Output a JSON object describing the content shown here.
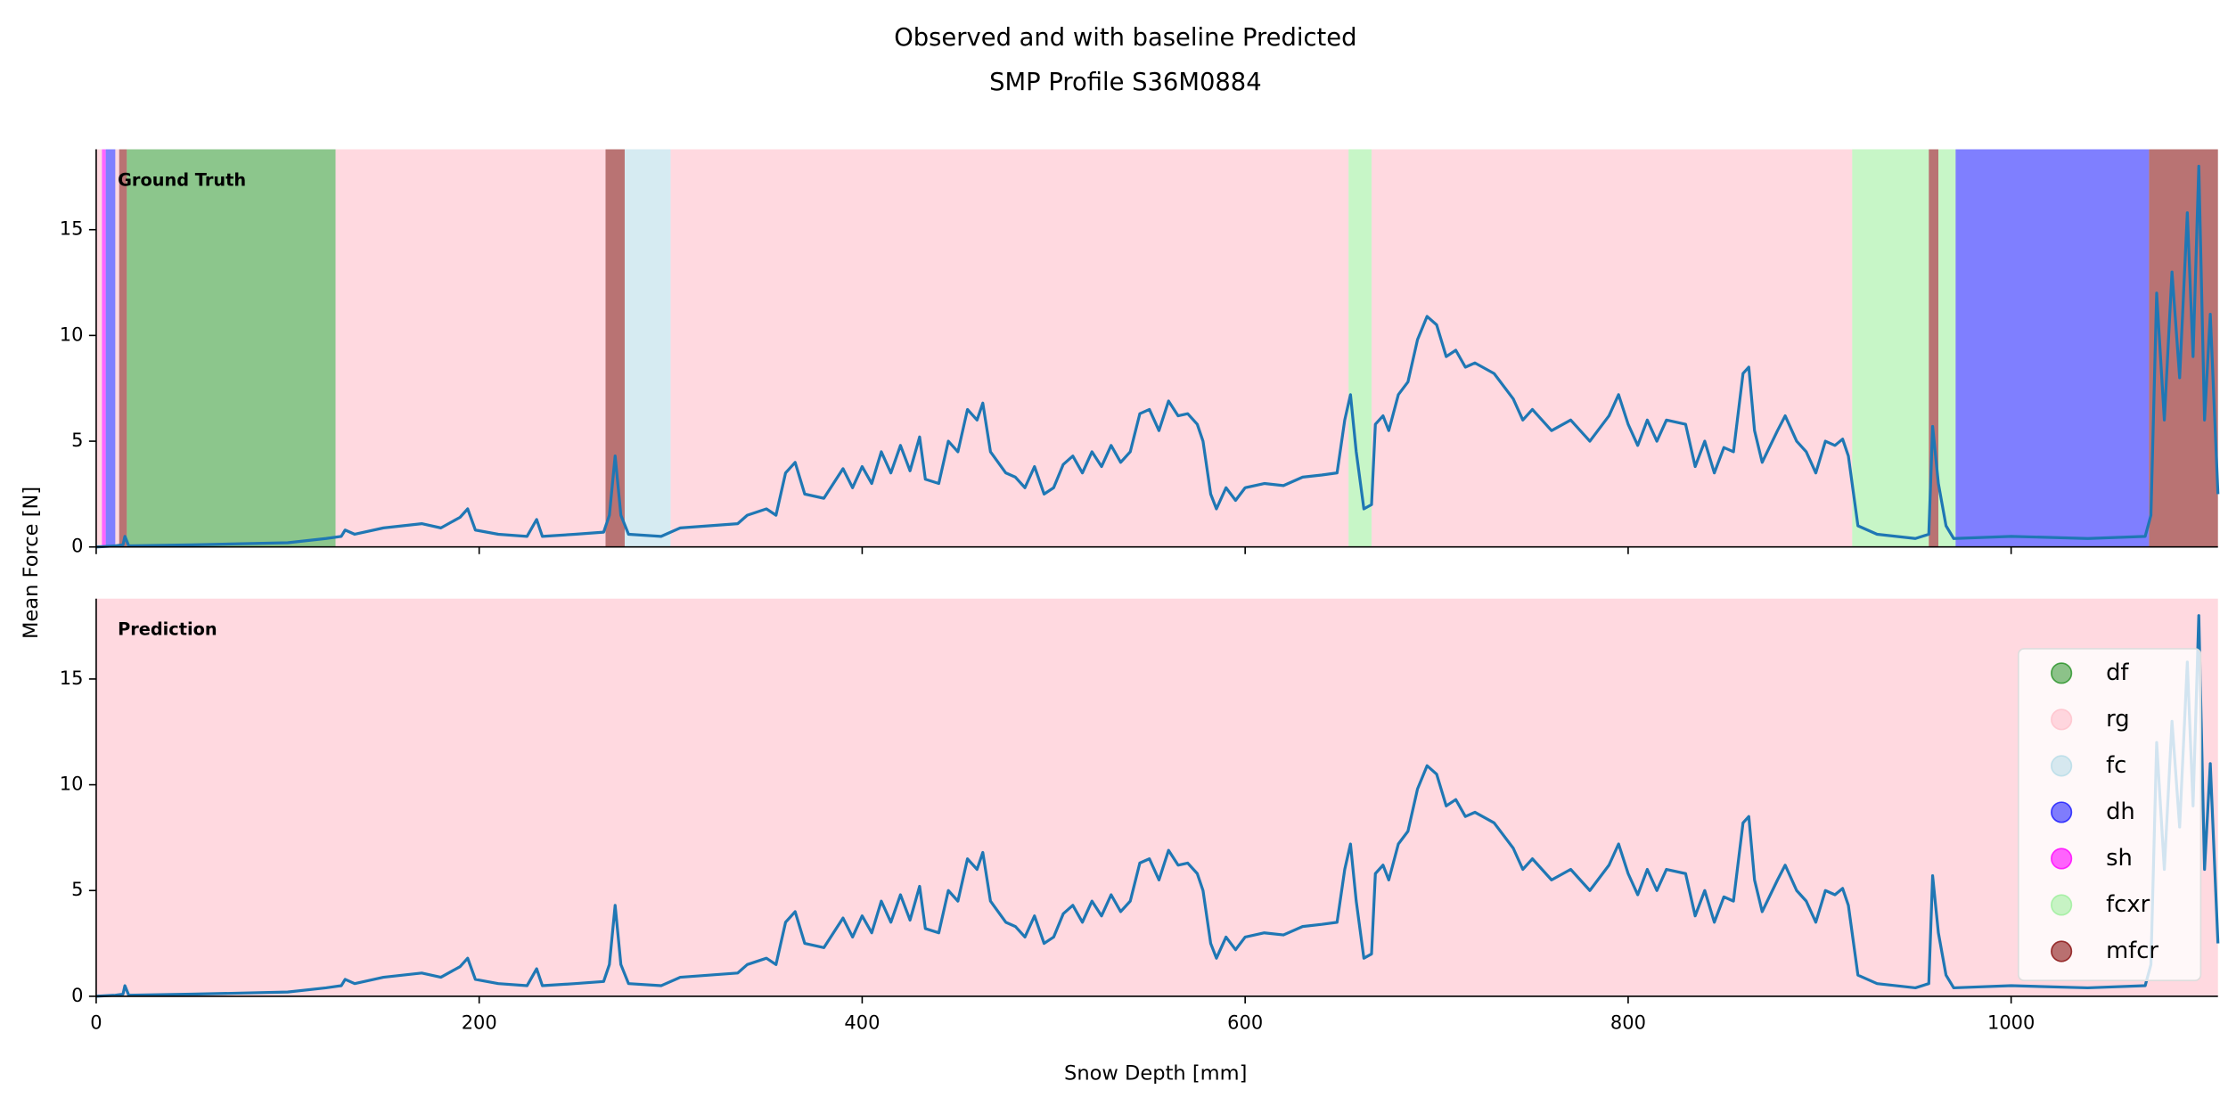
{
  "chart_data": {
    "type": "line",
    "title": [
      "Observed and with baseline Predicted",
      "SMP Profile S36M0884"
    ],
    "xlabel": "Snow Depth [mm]",
    "ylabel": "Mean Force [N]",
    "xlim": [
      0,
      1108
    ],
    "xticks": [
      0,
      200,
      400,
      600,
      800,
      1000
    ],
    "ylim": [
      0,
      18.8
    ],
    "yticks": [
      0,
      5,
      10,
      15
    ],
    "legend_position": "lower right",
    "classes": [
      {
        "name": "df",
        "color": "#008000",
        "opacity": 0.45
      },
      {
        "name": "rg",
        "color": "#ffc0cb",
        "opacity": 0.6
      },
      {
        "name": "fc",
        "color": "#add8e6",
        "opacity": 0.5
      },
      {
        "name": "dh",
        "color": "#0000ff",
        "opacity": 0.5
      },
      {
        "name": "sh",
        "color": "#ff00ff",
        "opacity": 0.6
      },
      {
        "name": "fcxr",
        "color": "#90ee90",
        "opacity": 0.5
      },
      {
        "name": "mfcr",
        "color": "#800000",
        "opacity": 0.55
      }
    ],
    "signal": {
      "color": "#1f77b4",
      "x": [
        0,
        10,
        14,
        15,
        17,
        50,
        100,
        120,
        128,
        130,
        135,
        150,
        170,
        180,
        190,
        194,
        198,
        210,
        225,
        230,
        233,
        250,
        265,
        268,
        271,
        274,
        278,
        295,
        305,
        320,
        335,
        340,
        350,
        355,
        360,
        365,
        370,
        380,
        385,
        390,
        395,
        400,
        405,
        410,
        415,
        420,
        425,
        430,
        433,
        440,
        445,
        450,
        455,
        460,
        463,
        467,
        475,
        480,
        485,
        490,
        495,
        500,
        505,
        510,
        515,
        520,
        525,
        530,
        535,
        540,
        545,
        550,
        555,
        560,
        565,
        570,
        575,
        578,
        582,
        585,
        590,
        595,
        600,
        610,
        620,
        630,
        640,
        648,
        652,
        655,
        658,
        662,
        666,
        668,
        672,
        675,
        680,
        685,
        690,
        695,
        700,
        705,
        710,
        715,
        720,
        730,
        740,
        745,
        750,
        760,
        770,
        780,
        790,
        795,
        800,
        805,
        810,
        815,
        820,
        830,
        835,
        840,
        845,
        850,
        855,
        860,
        863,
        866,
        870,
        878,
        882,
        888,
        893,
        898,
        903,
        908,
        912,
        915,
        920,
        930,
        940,
        950,
        957,
        959,
        962,
        966,
        970,
        1000,
        1040,
        1070,
        1073,
        1076,
        1080,
        1084,
        1088,
        1092,
        1095,
        1098,
        1101,
        1104,
        1108
      ],
      "y": [
        0,
        0.05,
        0.1,
        0.5,
        0.05,
        0.1,
        0.2,
        0.4,
        0.5,
        0.8,
        0.6,
        0.9,
        1.1,
        0.9,
        1.4,
        1.8,
        0.8,
        0.6,
        0.5,
        1.3,
        0.5,
        0.6,
        0.7,
        1.5,
        4.3,
        1.5,
        0.6,
        0.5,
        0.9,
        1.0,
        1.1,
        1.5,
        1.8,
        1.5,
        3.5,
        4.0,
        2.5,
        2.3,
        3.0,
        3.7,
        2.8,
        3.8,
        3.0,
        4.5,
        3.5,
        4.8,
        3.6,
        5.2,
        3.2,
        3.0,
        5.0,
        4.5,
        6.5,
        6.0,
        6.8,
        4.5,
        3.5,
        3.3,
        2.8,
        3.8,
        2.5,
        2.8,
        3.9,
        4.3,
        3.5,
        4.5,
        3.8,
        4.8,
        4.0,
        4.5,
        6.3,
        6.5,
        5.5,
        6.9,
        6.2,
        6.3,
        5.8,
        5.0,
        2.5,
        1.8,
        2.8,
        2.2,
        2.8,
        3.0,
        2.9,
        3.3,
        3.4,
        3.5,
        6.0,
        7.2,
        4.5,
        1.8,
        2.0,
        5.8,
        6.2,
        5.5,
        7.2,
        7.8,
        9.8,
        10.9,
        10.5,
        9.0,
        9.3,
        8.5,
        8.7,
        8.2,
        7.0,
        6.0,
        6.5,
        5.5,
        6.0,
        5.0,
        6.2,
        7.2,
        5.8,
        4.8,
        6.0,
        5.0,
        6.0,
        5.8,
        3.8,
        5.0,
        3.5,
        4.7,
        4.5,
        8.2,
        8.5,
        5.5,
        4.0,
        5.5,
        6.2,
        5.0,
        4.5,
        3.5,
        5.0,
        4.8,
        5.1,
        4.3,
        1.0,
        0.6,
        0.5,
        0.4,
        0.6,
        5.7,
        3.0,
        1.0,
        0.4,
        0.5,
        0.4,
        0.5,
        1.5,
        12.0,
        6.0,
        13.0,
        8.0,
        15.8,
        9.0,
        18.0,
        6.0,
        11.0,
        2.5
      ]
    },
    "panels": [
      {
        "label": "Ground Truth",
        "regions": [
          {
            "class": "rg",
            "start": 0,
            "end": 3
          },
          {
            "class": "sh",
            "start": 3,
            "end": 5
          },
          {
            "class": "dh",
            "start": 5,
            "end": 10
          },
          {
            "class": "rg",
            "start": 10,
            "end": 12
          },
          {
            "class": "mfcr",
            "start": 12,
            "end": 16
          },
          {
            "class": "df",
            "start": 16,
            "end": 125
          },
          {
            "class": "rg",
            "start": 125,
            "end": 266
          },
          {
            "class": "mfcr",
            "start": 266,
            "end": 276
          },
          {
            "class": "fc",
            "start": 276,
            "end": 300
          },
          {
            "class": "rg",
            "start": 300,
            "end": 654
          },
          {
            "class": "fcxr",
            "start": 654,
            "end": 666
          },
          {
            "class": "rg",
            "start": 666,
            "end": 917
          },
          {
            "class": "fcxr",
            "start": 917,
            "end": 957
          },
          {
            "class": "mfcr",
            "start": 957,
            "end": 962
          },
          {
            "class": "fcxr",
            "start": 962,
            "end": 971
          },
          {
            "class": "dh",
            "start": 971,
            "end": 1072
          },
          {
            "class": "mfcr",
            "start": 1072,
            "end": 1108
          }
        ]
      },
      {
        "label": "Prediction",
        "regions": [
          {
            "class": "rg",
            "start": 0,
            "end": 1108
          }
        ]
      }
    ]
  }
}
